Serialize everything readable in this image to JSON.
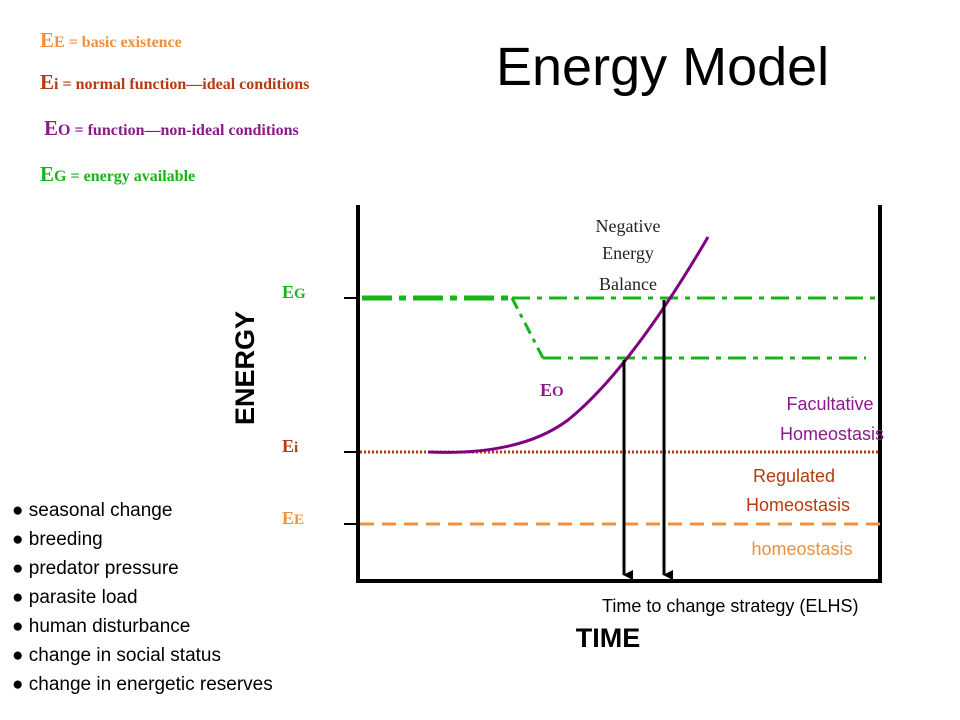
{
  "title": "Energy Model",
  "colors": {
    "ee": "#f0903c",
    "ei": "#b83a12",
    "eo": "#8b1a8b",
    "eg": "#18b418",
    "curve": "#800080",
    "axis": "#000000"
  },
  "definitions": {
    "ee": {
      "sym": "E",
      "sub": "E",
      "text": " = basic existence"
    },
    "ei": {
      "sym": "E",
      "sub": "i",
      "text": " = normal function—ideal conditions"
    },
    "eo": {
      "sym": "E",
      "sub": "O",
      "text": " = function—non-ideal conditions"
    },
    "eg": {
      "sym": "E",
      "sub": "G",
      "text": " = energy available"
    }
  },
  "diagram": {
    "y_axis_label": "ENERGY",
    "x_axis_label": "TIME",
    "level_labels": {
      "eg": "EG",
      "ei": "Ei",
      "ee": "EE",
      "eo": "EO"
    },
    "annotations": {
      "negative_balance": [
        "Negative",
        "Energy",
        "Balance"
      ],
      "facultative": [
        "Facultative",
        "Homeostasis"
      ],
      "regulated": [
        "Regulated",
        "Homeostasis"
      ],
      "homeostasis": "homeostasis",
      "time_to_change": "Time to change strategy (ELHS)"
    }
  },
  "factors": [
    "● seasonal change",
    "● breeding",
    "● predator pressure",
    "● parasite load",
    "● human disturbance",
    "● change in social status",
    "● change in energetic reserves"
  ]
}
